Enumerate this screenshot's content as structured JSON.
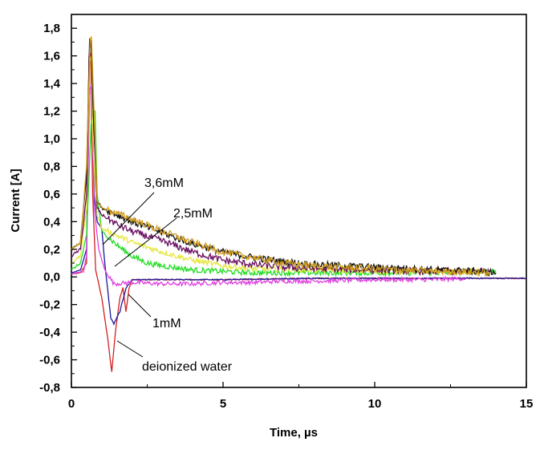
{
  "chart_data": {
    "type": "line",
    "xlabel": "Time, µs",
    "ylabel": "Current [A]",
    "xlim": [
      0,
      15
    ],
    "ylim": [
      -0.8,
      1.9
    ],
    "x_ticks": [
      {
        "value": 0,
        "label": "0"
      },
      {
        "value": 5,
        "label": "5"
      },
      {
        "value": 10,
        "label": "10"
      },
      {
        "value": 15,
        "label": "15"
      }
    ],
    "y_ticks": [
      {
        "value": -0.8,
        "label": "-0,8"
      },
      {
        "value": -0.6,
        "label": "-0,6"
      },
      {
        "value": -0.4,
        "label": "-0,4"
      },
      {
        "value": -0.2,
        "label": "-0,2"
      },
      {
        "value": 0.0,
        "label": "0,0"
      },
      {
        "value": 0.2,
        "label": "0,2"
      },
      {
        "value": 0.4,
        "label": "0,4"
      },
      {
        "value": 0.6,
        "label": "0,6"
      },
      {
        "value": 0.8,
        "label": "0,8"
      },
      {
        "value": 1.0,
        "label": "1,0"
      },
      {
        "value": 1.2,
        "label": "1,2"
      },
      {
        "value": 1.4,
        "label": "1,4"
      },
      {
        "value": 1.6,
        "label": "1,6"
      },
      {
        "value": 1.8,
        "label": "1,8"
      }
    ],
    "grid": false,
    "series": [
      {
        "color": "#d42020",
        "noise": 0.004,
        "points": [
          [
            0,
            0.02
          ],
          [
            0.3,
            0.03
          ],
          [
            0.5,
            0.1
          ],
          [
            0.58,
            1.6
          ],
          [
            0.63,
            1.62
          ],
          [
            0.7,
            0.6
          ],
          [
            0.8,
            0.05
          ],
          [
            1.0,
            -0.15
          ],
          [
            1.2,
            -0.45
          ],
          [
            1.33,
            -0.69
          ],
          [
            1.45,
            -0.4
          ],
          [
            1.6,
            -0.15
          ],
          [
            1.7,
            -0.08
          ],
          [
            1.8,
            -0.25
          ],
          [
            1.9,
            -0.08
          ],
          [
            2.0,
            -0.02
          ],
          [
            2.5,
            -0.02
          ],
          [
            3,
            -0.02
          ],
          [
            5,
            -0.02
          ],
          [
            8,
            -0.01
          ],
          [
            10,
            -0.01
          ],
          [
            13,
            -0.01
          ],
          [
            15,
            -0.01
          ]
        ]
      },
      {
        "color": "#1a1a9a",
        "noise": 0.004,
        "points": [
          [
            0,
            0.03
          ],
          [
            0.3,
            0.05
          ],
          [
            0.5,
            0.2
          ],
          [
            0.6,
            1.65
          ],
          [
            0.65,
            1.7
          ],
          [
            0.75,
            0.6
          ],
          [
            0.85,
            0.4
          ],
          [
            1.0,
            0.35
          ],
          [
            1.1,
            0.1
          ],
          [
            1.2,
            -0.1
          ],
          [
            1.3,
            -0.3
          ],
          [
            1.4,
            -0.34
          ],
          [
            1.6,
            -0.25
          ],
          [
            1.8,
            -0.08
          ],
          [
            2.0,
            -0.02
          ],
          [
            3,
            -0.02
          ],
          [
            5,
            -0.02
          ],
          [
            8,
            -0.01
          ],
          [
            10,
            -0.01
          ],
          [
            13,
            -0.01
          ],
          [
            14.5,
            -0.01
          ],
          [
            15,
            -0.01
          ]
        ]
      },
      {
        "color": "#e040e0",
        "noise": 0.015,
        "points": [
          [
            0,
            0.02
          ],
          [
            0.4,
            0.04
          ],
          [
            0.5,
            0.15
          ],
          [
            0.6,
            1.35
          ],
          [
            0.66,
            1.4
          ],
          [
            0.75,
            0.5
          ],
          [
            0.9,
            0.2
          ],
          [
            1.1,
            0.05
          ],
          [
            1.4,
            -0.05
          ],
          [
            2,
            -0.04
          ],
          [
            3,
            -0.05
          ],
          [
            4,
            -0.05
          ],
          [
            5,
            -0.04
          ],
          [
            6,
            -0.04
          ],
          [
            7,
            -0.03
          ],
          [
            8,
            -0.03
          ],
          [
            10,
            -0.02
          ],
          [
            12,
            -0.02
          ],
          [
            13,
            -0.01
          ]
        ]
      },
      {
        "color": "#22dd22",
        "noise": 0.02,
        "points": [
          [
            0,
            0.05
          ],
          [
            0.3,
            0.1
          ],
          [
            0.5,
            0.3
          ],
          [
            0.65,
            1.1
          ],
          [
            0.72,
            1.2
          ],
          [
            0.78,
            1.2
          ],
          [
            0.85,
            0.6
          ],
          [
            1.0,
            0.33
          ],
          [
            1.5,
            0.23
          ],
          [
            2,
            0.15
          ],
          [
            2.5,
            0.1
          ],
          [
            3,
            0.08
          ],
          [
            4,
            0.05
          ],
          [
            5,
            0.04
          ],
          [
            6,
            0.03
          ],
          [
            8,
            0.03
          ],
          [
            10,
            0.03
          ],
          [
            12,
            0.03
          ],
          [
            13.5,
            0.04
          ],
          [
            14,
            0.04
          ]
        ]
      },
      {
        "color": "#e6e640",
        "noise": 0.02,
        "points": [
          [
            0,
            0.1
          ],
          [
            0.3,
            0.15
          ],
          [
            0.5,
            0.5
          ],
          [
            0.6,
            1.55
          ],
          [
            0.65,
            1.6
          ],
          [
            0.72,
            0.9
          ],
          [
            0.85,
            0.45
          ],
          [
            1.0,
            0.35
          ],
          [
            1.5,
            0.3
          ],
          [
            2,
            0.25
          ],
          [
            3,
            0.18
          ],
          [
            4,
            0.12
          ],
          [
            5,
            0.08
          ],
          [
            6,
            0.06
          ],
          [
            8,
            0.05
          ],
          [
            10,
            0.04
          ],
          [
            12,
            0.04
          ],
          [
            13.5,
            0.04
          ]
        ]
      },
      {
        "color": "#6a1060",
        "noise": 0.025,
        "points": [
          [
            0,
            0.15
          ],
          [
            0.3,
            0.2
          ],
          [
            0.5,
            0.6
          ],
          [
            0.6,
            1.65
          ],
          [
            0.65,
            1.7
          ],
          [
            0.72,
            1.2
          ],
          [
            0.85,
            0.5
          ],
          [
            1.0,
            0.45
          ],
          [
            1.5,
            0.38
          ],
          [
            2,
            0.33
          ],
          [
            3,
            0.26
          ],
          [
            4,
            0.18
          ],
          [
            5,
            0.12
          ],
          [
            6,
            0.09
          ],
          [
            7,
            0.07
          ],
          [
            8,
            0.06
          ],
          [
            10,
            0.05
          ],
          [
            12,
            0.04
          ],
          [
            13.8,
            0.04
          ]
        ]
      },
      {
        "color": "#111111",
        "noise": 0.025,
        "points": [
          [
            0,
            0.2
          ],
          [
            0.3,
            0.25
          ],
          [
            0.5,
            0.75
          ],
          [
            0.6,
            1.72
          ],
          [
            0.65,
            1.72
          ],
          [
            0.72,
            1.2
          ],
          [
            0.85,
            0.55
          ],
          [
            1.0,
            0.5
          ],
          [
            1.5,
            0.45
          ],
          [
            2,
            0.4
          ],
          [
            3,
            0.32
          ],
          [
            4,
            0.24
          ],
          [
            5,
            0.18
          ],
          [
            6,
            0.14
          ],
          [
            7,
            0.11
          ],
          [
            8,
            0.09
          ],
          [
            10,
            0.07
          ],
          [
            12,
            0.05
          ],
          [
            13.5,
            0.04
          ],
          [
            14,
            0.03
          ]
        ]
      },
      {
        "color": "#d4a020",
        "noise": 0.025,
        "points": [
          [
            0,
            0.2
          ],
          [
            0.3,
            0.25
          ],
          [
            0.5,
            0.8
          ],
          [
            0.62,
            1.72
          ],
          [
            0.66,
            1.73
          ],
          [
            0.75,
            1.2
          ],
          [
            0.85,
            0.55
          ],
          [
            1.0,
            0.5
          ],
          [
            1.5,
            0.46
          ],
          [
            2,
            0.42
          ],
          [
            3,
            0.33
          ],
          [
            4,
            0.25
          ],
          [
            5,
            0.18
          ],
          [
            6,
            0.14
          ],
          [
            7,
            0.1
          ],
          [
            8,
            0.08
          ],
          [
            10,
            0.06
          ],
          [
            12,
            0.04
          ],
          [
            13.8,
            0.03
          ]
        ]
      }
    ],
    "annotations": [
      {
        "text": "3,6mM",
        "arrow_to": [
          0.95,
          0.18
        ]
      },
      {
        "text": "2,5mM",
        "arrow_to": [
          1.05,
          0.05
        ]
      },
      {
        "text": "1mM",
        "arrow_to": [
          1.8,
          -0.1
        ]
      },
      {
        "text": "deionized water",
        "arrow_to": [
          1.35,
          -0.6
        ]
      }
    ]
  }
}
